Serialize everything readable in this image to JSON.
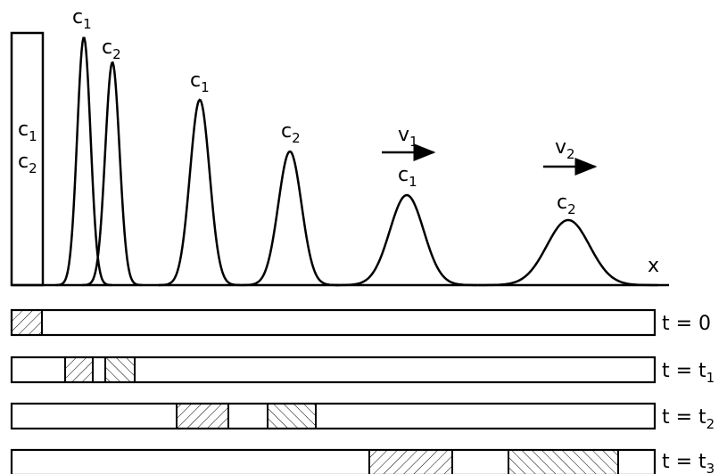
{
  "labels": {
    "c1": {
      "base": "c",
      "sub": "1"
    },
    "c2": {
      "base": "c",
      "sub": "2"
    },
    "v1": {
      "base": "v",
      "sub": "1"
    },
    "v2": {
      "base": "v",
      "sub": "2"
    },
    "x": "x"
  },
  "times": [
    {
      "base": "t = 0",
      "sub": ""
    },
    {
      "base": "t = t",
      "sub": "1"
    },
    {
      "base": "t = t",
      "sub": "2"
    },
    {
      "base": "t = t",
      "sub": "3"
    }
  ],
  "colors": {
    "stroke": "#000000",
    "background": "#ffffff"
  }
}
